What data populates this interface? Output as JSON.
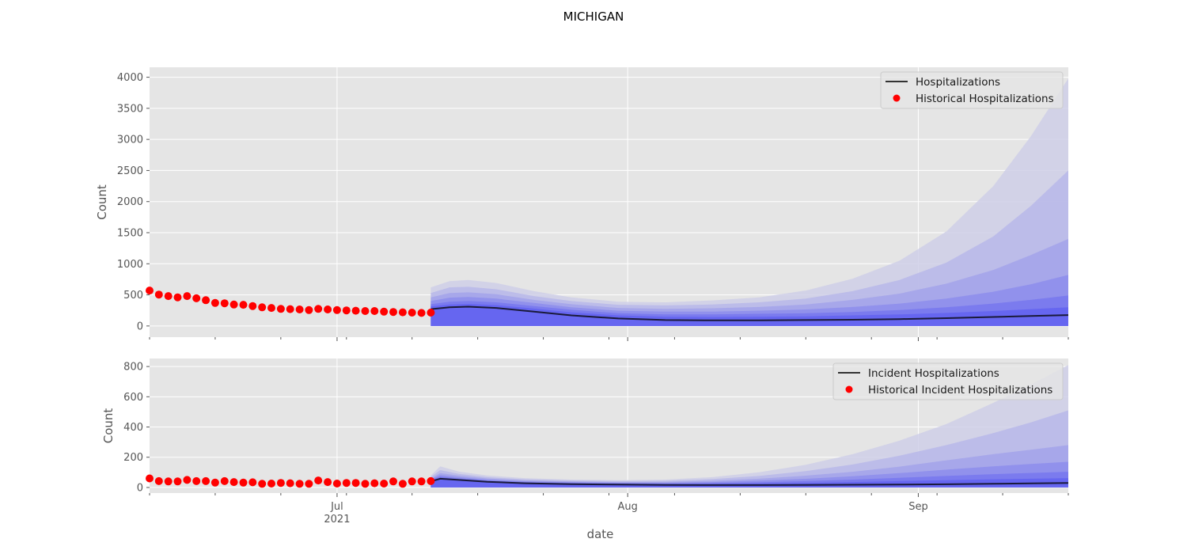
{
  "figure_title": "MICHIGAN",
  "chart_data": [
    {
      "type": "line",
      "title": "",
      "xlabel": "",
      "ylabel": "Count",
      "x_range": [
        "2021-06-11",
        "2021-09-17"
      ],
      "ylim": [
        -180,
        4160
      ],
      "y_ticks": [
        0,
        500,
        1000,
        1500,
        2000,
        2500,
        3000,
        3500,
        4000
      ],
      "x_ticks": [
        {
          "date": "2021-07-01",
          "label": "Jul",
          "sublabel": "2021"
        },
        {
          "date": "2021-08-01",
          "label": "Aug",
          "sublabel": ""
        },
        {
          "date": "2021-09-01",
          "label": "Sep",
          "sublabel": ""
        }
      ],
      "grid": true,
      "legend_position": "top-right",
      "legend": [
        {
          "label": "Hospitalizations",
          "kind": "line",
          "color": "#333333"
        },
        {
          "label": "Historical Hospitalizations",
          "kind": "marker",
          "color": "#ff0000"
        }
      ],
      "historical": {
        "name": "Historical Hospitalizations",
        "x": [
          "2021-06-11",
          "2021-06-12",
          "2021-06-13",
          "2021-06-14",
          "2021-06-15",
          "2021-06-16",
          "2021-06-17",
          "2021-06-18",
          "2021-06-19",
          "2021-06-20",
          "2021-06-21",
          "2021-06-22",
          "2021-06-23",
          "2021-06-24",
          "2021-06-25",
          "2021-06-26",
          "2021-06-27",
          "2021-06-28",
          "2021-06-29",
          "2021-06-30",
          "2021-07-01",
          "2021-07-02",
          "2021-07-03",
          "2021-07-04",
          "2021-07-05",
          "2021-07-06",
          "2021-07-07",
          "2021-07-08",
          "2021-07-09",
          "2021-07-10",
          "2021-07-11"
        ],
        "y": [
          570,
          505,
          480,
          460,
          480,
          445,
          415,
          370,
          365,
          345,
          340,
          320,
          300,
          290,
          275,
          270,
          265,
          255,
          275,
          265,
          255,
          250,
          245,
          240,
          240,
          230,
          225,
          220,
          215,
          210,
          215
        ]
      },
      "forecast": {
        "name": "Hospitalizations",
        "x": [
          "2021-07-11",
          "2021-07-13",
          "2021-07-15",
          "2021-07-18",
          "2021-07-22",
          "2021-07-26",
          "2021-07-31",
          "2021-08-05",
          "2021-08-10",
          "2021-08-15",
          "2021-08-20",
          "2021-08-25",
          "2021-08-30",
          "2021-09-04",
          "2021-09-09",
          "2021-09-13",
          "2021-09-17"
        ],
        "y": [
          270,
          300,
          310,
          290,
          230,
          170,
          120,
          95,
          90,
          90,
          95,
          100,
          110,
          125,
          145,
          160,
          175
        ],
        "bands": [
          {
            "upper": [
              620,
              720,
              740,
              690,
              560,
              460,
              390,
              380,
              410,
              460,
              570,
              760,
              1050,
              1520,
              2250,
              3050,
              3980
            ]
          },
          {
            "upper": [
              530,
              620,
              630,
              590,
              480,
              400,
              340,
              330,
              345,
              380,
              440,
              560,
              740,
              1020,
              1440,
              1930,
              2500
            ]
          },
          {
            "upper": [
              460,
              530,
              540,
              510,
              420,
              350,
              290,
              275,
              285,
              305,
              345,
              420,
              520,
              680,
              900,
              1140,
              1400
            ]
          },
          {
            "upper": [
              400,
              455,
              465,
              440,
              370,
              300,
              245,
              230,
              230,
              245,
              265,
              305,
              360,
              440,
              550,
              670,
              820
            ]
          },
          {
            "upper": [
              350,
              390,
              400,
              380,
              320,
              260,
              205,
              185,
              185,
              195,
              205,
              225,
              255,
              300,
              360,
              420,
              490
            ]
          },
          {
            "upper": [
              315,
              345,
              355,
              335,
              280,
              220,
              170,
              150,
              145,
              150,
              155,
              170,
              185,
              210,
              240,
              270,
              300
            ]
          }
        ]
      }
    },
    {
      "type": "line",
      "title": "",
      "xlabel": "date",
      "ylabel": "Count",
      "x_range": [
        "2021-06-11",
        "2021-09-17"
      ],
      "ylim": [
        -37,
        853
      ],
      "y_ticks": [
        0,
        200,
        400,
        600,
        800
      ],
      "x_ticks": [
        {
          "date": "2021-07-01",
          "label": "Jul",
          "sublabel": "2021"
        },
        {
          "date": "2021-08-01",
          "label": "Aug",
          "sublabel": ""
        },
        {
          "date": "2021-09-01",
          "label": "Sep",
          "sublabel": ""
        }
      ],
      "grid": true,
      "legend_position": "top-right",
      "legend": [
        {
          "label": "Incident Hospitalizations",
          "kind": "line",
          "color": "#333333"
        },
        {
          "label": "Historical Incident Hospitalizations",
          "kind": "marker",
          "color": "#ff0000"
        }
      ],
      "historical": {
        "name": "Historical Incident Hospitalizations",
        "x": [
          "2021-06-11",
          "2021-06-12",
          "2021-06-13",
          "2021-06-14",
          "2021-06-15",
          "2021-06-16",
          "2021-06-17",
          "2021-06-18",
          "2021-06-19",
          "2021-06-20",
          "2021-06-21",
          "2021-06-22",
          "2021-06-23",
          "2021-06-24",
          "2021-06-25",
          "2021-06-26",
          "2021-06-27",
          "2021-06-28",
          "2021-06-29",
          "2021-06-30",
          "2021-07-01",
          "2021-07-02",
          "2021-07-03",
          "2021-07-04",
          "2021-07-05",
          "2021-07-06",
          "2021-07-07",
          "2021-07-08",
          "2021-07-09",
          "2021-07-10",
          "2021-07-11"
        ],
        "y": [
          60,
          42,
          40,
          40,
          50,
          42,
          42,
          32,
          42,
          36,
          32,
          34,
          24,
          26,
          30,
          28,
          24,
          24,
          46,
          36,
          26,
          30,
          30,
          24,
          28,
          26,
          40,
          24,
          40,
          40,
          42
        ]
      },
      "forecast": {
        "name": "Incident Hospitalizations",
        "x": [
          "2021-07-11",
          "2021-07-12",
          "2021-07-14",
          "2021-07-17",
          "2021-07-21",
          "2021-07-26",
          "2021-07-31",
          "2021-08-05",
          "2021-08-10",
          "2021-08-15",
          "2021-08-20",
          "2021-08-25",
          "2021-08-30",
          "2021-09-04",
          "2021-09-09",
          "2021-09-13",
          "2021-09-17"
        ],
        "y": [
          40,
          58,
          50,
          38,
          28,
          22,
          19,
          17,
          16,
          16,
          17,
          18,
          19,
          21,
          24,
          27,
          30
        ],
        "bands": [
          {
            "upper": [
              80,
              140,
              105,
              80,
              62,
              52,
              48,
              52,
              68,
              100,
              150,
              220,
              310,
              420,
              560,
              680,
              810
            ]
          },
          {
            "upper": [
              70,
              115,
              90,
              68,
              54,
              46,
              42,
              44,
              55,
              76,
              108,
              152,
              210,
              280,
              360,
              430,
              510
            ]
          },
          {
            "upper": [
              60,
              95,
              78,
              60,
              47,
              40,
              36,
              37,
              44,
              58,
              78,
              104,
              138,
              180,
              220,
              250,
              280
            ]
          },
          {
            "upper": [
              55,
              82,
              68,
              52,
              41,
              35,
              31,
              31,
              36,
              45,
              57,
              74,
              95,
              118,
              140,
              155,
              170
            ]
          },
          {
            "upper": [
              50,
              72,
              60,
              46,
              36,
              30,
              27,
              26,
              29,
              34,
              42,
              52,
              64,
              76,
              88,
              96,
              104
            ]
          },
          {
            "upper": [
              46,
              65,
              55,
              42,
              32,
              27,
              24,
              22,
              23,
              26,
              30,
              36,
              42,
              48,
              54,
              58,
              62
            ]
          }
        ]
      }
    }
  ]
}
